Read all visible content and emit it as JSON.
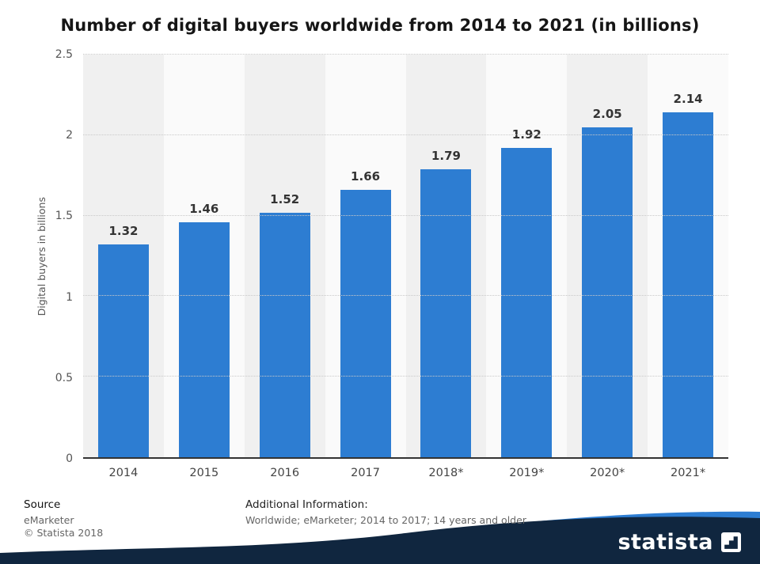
{
  "title": "Number of digital buyers worldwide from 2014 to 2021 (in billions)",
  "chart_data": {
    "type": "bar",
    "categories": [
      "2014",
      "2015",
      "2016",
      "2017",
      "2018*",
      "2019*",
      "2020*",
      "2021*"
    ],
    "values": [
      1.32,
      1.46,
      1.52,
      1.66,
      1.79,
      1.92,
      2.05,
      2.14
    ],
    "value_labels": [
      "1.32",
      "1.46",
      "1.52",
      "1.66",
      "1.79",
      "1.92",
      "2.05",
      "2.14"
    ],
    "title": "Number of digital buyers worldwide from 2014 to 2021 (in billions)",
    "xlabel": "",
    "ylabel": "Digital buyers in billions",
    "ylim": [
      0,
      2.5
    ],
    "yticks": [
      0,
      0.5,
      1,
      1.5,
      2,
      2.5
    ],
    "ytick_labels": [
      "0",
      "0.5",
      "1",
      "1.5",
      "2",
      "2.5"
    ],
    "grid": "dotted horizontal gridlines at each 0.5 step",
    "legend": "none",
    "bar_color": "#2d7dd2",
    "stripe_colors": [
      "#f0f0f0",
      "#fafafa"
    ]
  },
  "footer": {
    "source_heading": "Source",
    "source_lines": [
      "eMarketer",
      "© Statista 2018"
    ],
    "additional_heading": "Additional Information:",
    "additional_text": "Worldwide; eMarketer; 2014 to 2017; 14 years and older"
  },
  "branding": {
    "logo_text": "statista",
    "navy": "#10263f",
    "accent_blue": "#2d7dd2"
  }
}
